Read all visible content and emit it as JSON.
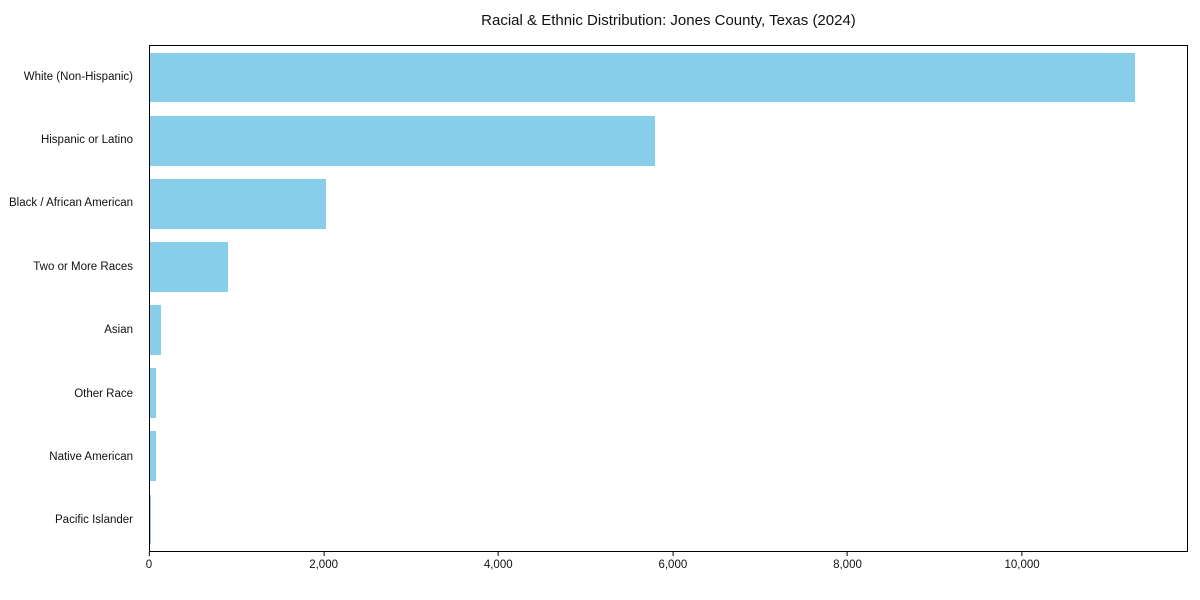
{
  "title": "Racial & Ethnic Distribution: Jones County, Texas (2024)",
  "chart_data": {
    "type": "bar",
    "orientation": "horizontal",
    "title": "Racial & Ethnic Distribution: Jones County, Texas (2024)",
    "categories": [
      "White (Non-Hispanic)",
      "Hispanic or Latino",
      "Black / African American",
      "Two or More Races",
      "Asian",
      "Other Race",
      "Native American",
      "Pacific Islander"
    ],
    "values": [
      11300,
      5800,
      2020,
      900,
      130,
      70,
      70,
      5
    ],
    "xlabel": "",
    "ylabel": "",
    "xlim": [
      0,
      11900
    ],
    "xticks": [
      0,
      2000,
      4000,
      6000,
      8000,
      10000
    ],
    "grid": false,
    "legend": false,
    "bar_color": "#87CEEB",
    "axis_color": "#000000",
    "background_color": "#ffffff"
  }
}
